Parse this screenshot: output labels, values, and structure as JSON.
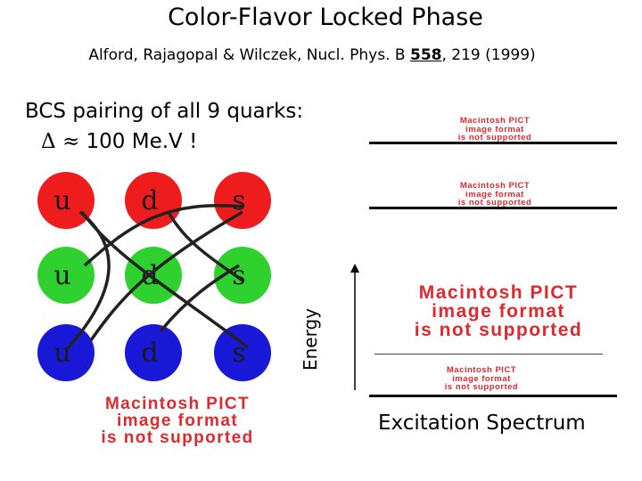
{
  "title": "Color-Flavor Locked Phase",
  "citation": {
    "prefix": "Alford, Rajagopal & Wilczek, Nucl. Phys. B ",
    "volume": "558",
    "suffix": ", 219 (1999)"
  },
  "bcs": {
    "line1": "BCS pairing of all 9 quarks:",
    "delta_symbol": "Δ",
    "approx": "≈",
    "value": "100 Me.V !"
  },
  "quark_grid": {
    "rows": [
      {
        "color": "#ee1c1c",
        "labels": [
          "u",
          "d",
          "s"
        ]
      },
      {
        "color": "#2ed12e",
        "labels": [
          "u",
          "d",
          "s"
        ]
      },
      {
        "color": "#1818d6",
        "labels": [
          "u",
          "d",
          "s"
        ]
      }
    ]
  },
  "placeholder": {
    "line1": "Macintosh PICT",
    "line2": "image format",
    "line3": "is not supported"
  },
  "axis_label": "Energy",
  "spectrum_label": "Excitation Spectrum"
}
